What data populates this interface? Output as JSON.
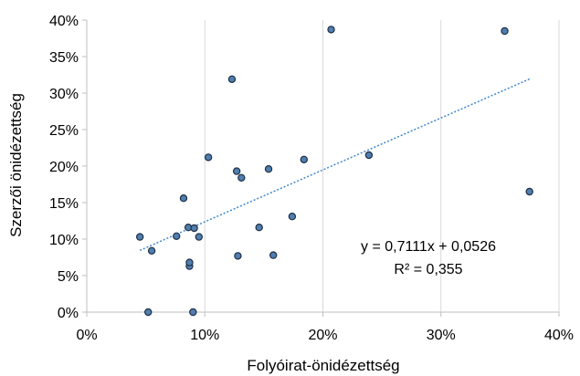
{
  "chart_data": {
    "type": "scatter",
    "xlabel": "Folyóirat-önidézettség",
    "ylabel": "Szerzői önidézettség",
    "xlim": [
      0,
      0.4
    ],
    "ylim": [
      0,
      0.4
    ],
    "x_ticks": [
      0,
      0.1,
      0.2,
      0.3,
      0.4
    ],
    "y_ticks": [
      0,
      0.05,
      0.1,
      0.15,
      0.2,
      0.25,
      0.3,
      0.35,
      0.4
    ],
    "x_tick_labels": [
      "0%",
      "10%",
      "20%",
      "30%",
      "40%"
    ],
    "y_tick_labels": [
      "0%",
      "5%",
      "10%",
      "15%",
      "20%",
      "25%",
      "30%",
      "35%",
      "40%"
    ],
    "grid": "vertical",
    "marker_fill": "#4f7fb0",
    "marker_edge": "#1f2f44",
    "trendline_color": "#3f87d0",
    "points": [
      {
        "x": 0.045,
        "y": 0.103
      },
      {
        "x": 0.052,
        "y": 0.0
      },
      {
        "x": 0.055,
        "y": 0.084
      },
      {
        "x": 0.076,
        "y": 0.104
      },
      {
        "x": 0.082,
        "y": 0.156
      },
      {
        "x": 0.086,
        "y": 0.116
      },
      {
        "x": 0.087,
        "y": 0.063
      },
      {
        "x": 0.087,
        "y": 0.068
      },
      {
        "x": 0.09,
        "y": 0.0
      },
      {
        "x": 0.091,
        "y": 0.115
      },
      {
        "x": 0.095,
        "y": 0.103
      },
      {
        "x": 0.103,
        "y": 0.212
      },
      {
        "x": 0.123,
        "y": 0.319
      },
      {
        "x": 0.127,
        "y": 0.193
      },
      {
        "x": 0.128,
        "y": 0.077
      },
      {
        "x": 0.131,
        "y": 0.184
      },
      {
        "x": 0.146,
        "y": 0.116
      },
      {
        "x": 0.154,
        "y": 0.196
      },
      {
        "x": 0.158,
        "y": 0.078
      },
      {
        "x": 0.174,
        "y": 0.131
      },
      {
        "x": 0.184,
        "y": 0.209
      },
      {
        "x": 0.207,
        "y": 0.387
      },
      {
        "x": 0.239,
        "y": 0.215
      },
      {
        "x": 0.354,
        "y": 0.385
      },
      {
        "x": 0.375,
        "y": 0.165
      }
    ],
    "trendline": {
      "slope": 0.7111,
      "intercept": 0.0526,
      "x_range": [
        0.045,
        0.375
      ],
      "equation": "y = 0,7111x + 0,0526",
      "r_squared": "R² = 0,355"
    }
  }
}
